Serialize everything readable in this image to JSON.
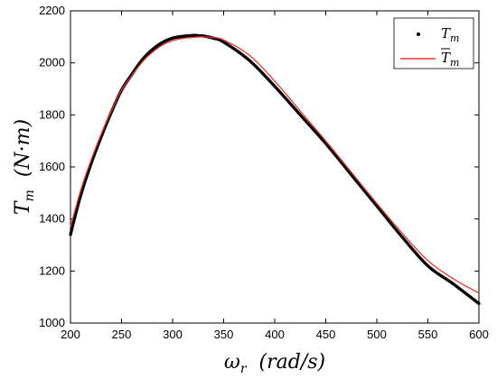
{
  "chart_data": {
    "type": "line",
    "title": "",
    "xlabel": "ω_r  (rad/s)",
    "ylabel": "T_m  (N·m)",
    "xlim": [
      200,
      600
    ],
    "ylim": [
      1000,
      2200
    ],
    "xticks": [
      "200",
      "250",
      "300",
      "350",
      "400",
      "450",
      "500",
      "550",
      "600"
    ],
    "yticks": [
      "1000",
      "1200",
      "1400",
      "1600",
      "1800",
      "2000",
      "2200"
    ],
    "grid": false,
    "legend_position": "top-right",
    "series": [
      {
        "name": "T_m",
        "style": "dotted",
        "color": "#000000",
        "x": [
          200,
          210,
          220,
          230,
          240,
          250,
          260,
          270,
          280,
          290,
          300,
          310,
          320,
          330,
          340,
          350,
          375,
          400,
          425,
          450,
          475,
          500,
          525,
          550,
          575,
          600
        ],
        "y": [
          1340,
          1490,
          1610,
          1715,
          1810,
          1895,
          1955,
          2010,
          2050,
          2078,
          2095,
          2102,
          2105,
          2103,
          2095,
          2080,
          2010,
          1910,
          1800,
          1690,
          1570,
          1450,
          1330,
          1220,
          1150,
          1075
        ]
      },
      {
        "name": "T̄_m",
        "style": "solid",
        "color": "#e8392b",
        "x": [
          200,
          210,
          220,
          230,
          240,
          250,
          260,
          270,
          280,
          290,
          300,
          310,
          320,
          330,
          340,
          350,
          375,
          400,
          425,
          450,
          475,
          500,
          525,
          550,
          575,
          600
        ],
        "y": [
          1370,
          1510,
          1625,
          1725,
          1815,
          1895,
          1950,
          2002,
          2040,
          2068,
          2085,
          2094,
          2098,
          2100,
          2097,
          2088,
          2030,
          1930,
          1815,
          1700,
          1580,
          1460,
          1345,
          1240,
          1170,
          1115
        ]
      }
    ]
  },
  "legend": {
    "items": [
      {
        "label": "T",
        "sub": "m",
        "bar": false,
        "marker": "dot",
        "color": "#000000"
      },
      {
        "label": "T",
        "sub": "m",
        "bar": true,
        "marker": "line",
        "color": "#e8392b"
      }
    ]
  }
}
